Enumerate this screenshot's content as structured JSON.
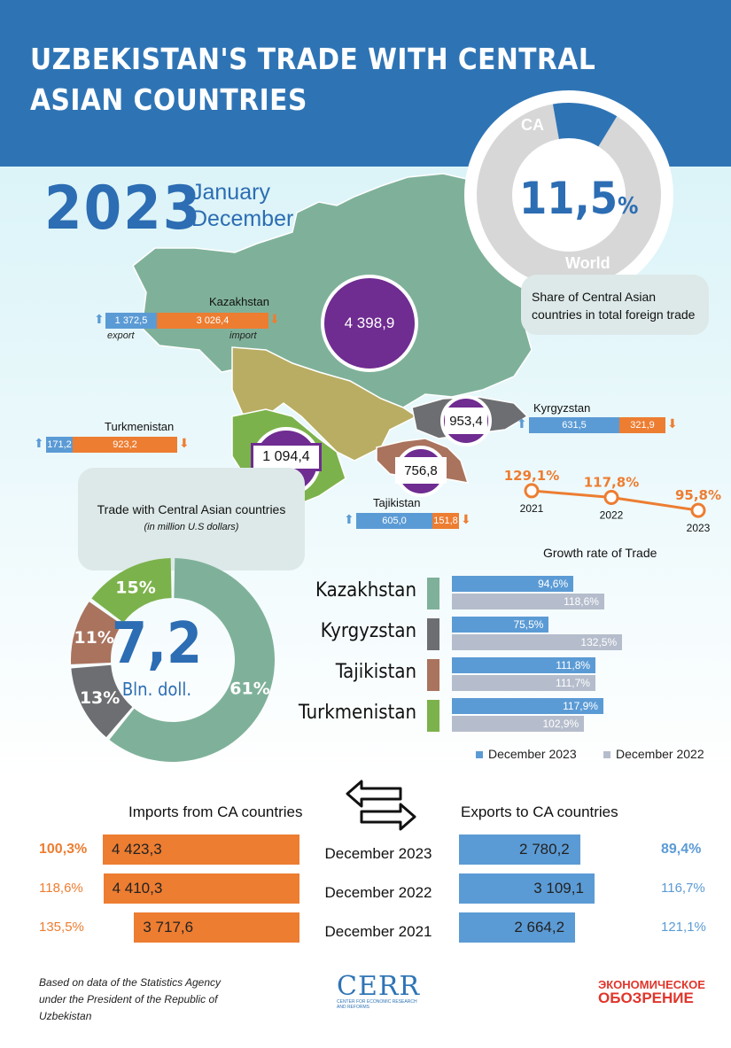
{
  "title": "UZBEKISTAN'S TRADE WITH CENTRAL ASIAN COUNTRIES",
  "year": "2023",
  "period": "January December",
  "share": {
    "ca_label": "CA",
    "world_label": "World",
    "value": "11,5",
    "unit": "%",
    "caption": "Share of Central Asian countries in total foreign trade",
    "fraction": 0.115
  },
  "map": {
    "kazakhstan": {
      "name": "Kazakhstan",
      "total": "4 398,9",
      "export": "1 372,5",
      "import": "3 026,4",
      "export_caption": "export",
      "import_caption": "import"
    },
    "kyrgyzstan": {
      "name": "Kyrgyzstan",
      "total": "953,4",
      "export": "631,5",
      "import": "321,9"
    },
    "turkmenistan": {
      "name": "Turkmenistan",
      "total": "1 094,4",
      "export": "171,2",
      "import": "923,2"
    },
    "tajikistan": {
      "name": "Tajikistan",
      "total": "756,8",
      "export": "605,0",
      "import": "151,8"
    }
  },
  "trade_box": {
    "title": "Trade with Central Asian countries",
    "subtitle": "(in million U.S dollars)"
  },
  "donut": {
    "total": "7,2",
    "unit": "Bln. doll."
  },
  "growth_title": "Growth rate of Trade",
  "legend": {
    "dec2023": "December 2023",
    "dec2022": "December 2022"
  },
  "tables": {
    "imports_title": "Imports from CA countries",
    "exports_title": "Exports to CA countries",
    "rows": [
      {
        "year": "December 2023",
        "import": "4 423,3",
        "import_growth": "100,3%",
        "export": "2 780,2",
        "export_growth": "89,4%"
      },
      {
        "year": "December 2022",
        "import": "4 410,3",
        "import_growth": "118,6%",
        "export": "3 109,1",
        "export_growth": "116,7%"
      },
      {
        "year": "December 2021",
        "import": "3 717,6",
        "import_growth": "135,5%",
        "export": "2 664,2",
        "export_growth": "121,1%"
      }
    ]
  },
  "footer": {
    "source": "Based on data of the Statistics Agency under the President of the Republic of Uzbekistan",
    "cerr": "CERR",
    "cerr_sub": "CENTER FOR ECONOMIC RESEARCH AND REFORMS",
    "brand_line1": "ЭКОНОМИЧЕСКОЕ",
    "brand_line2": "ОБОЗРЕНИЕ"
  },
  "colors": {
    "header": "#2e74b5",
    "kazakhstan": "#7fb19a",
    "kyrgyzstan": "#6d6e71",
    "tajikistan": "#a9735e",
    "turkmenistan": "#7cb24c",
    "bubble": "#6f2c91",
    "export": "#5b9bd5",
    "import": "#ed7d31",
    "prev_year": "#b5bdcc"
  },
  "chart_data": [
    {
      "type": "pie",
      "categories": [
        "Kazakhstan",
        "Kyrgyzstan",
        "Tajikistan",
        "Turkmenistan"
      ],
      "values": [
        61,
        13,
        11,
        15
      ],
      "labels": [
        "61%",
        "13%",
        "11%",
        "15%"
      ]
    },
    {
      "type": "line",
      "title": "Growth rate of Trade",
      "x": [
        "2021",
        "2022",
        "2023"
      ],
      "values": [
        129.1,
        117.8,
        95.8
      ],
      "labels": [
        "129,1%",
        "117,8%",
        "95,8%"
      ]
    },
    {
      "type": "bar",
      "categories": [
        "Kazakhstan",
        "Kyrgyzstan",
        "Tajikistan",
        "Turkmenistan"
      ],
      "series": [
        {
          "name": "December 2023",
          "values": [
            94.6,
            75.5,
            111.8,
            117.9
          ],
          "labels": [
            "94,6%",
            "75,5%",
            "111,8%",
            "117,9%"
          ]
        },
        {
          "name": "December 2022",
          "values": [
            118.6,
            132.5,
            111.7,
            102.9
          ],
          "labels": [
            "118,6%",
            "132,5%",
            "111,7%",
            "102,9%"
          ]
        }
      ]
    },
    {
      "type": "bar",
      "categories": [
        "December 2023",
        "December 2022",
        "December 2021"
      ],
      "series": [
        {
          "name": "Imports from CA countries",
          "values": [
            4423.3,
            4410.3,
            3717.6
          ]
        },
        {
          "name": "Exports to CA countries",
          "values": [
            2780.2,
            3109.1,
            2664.2
          ]
        }
      ]
    },
    {
      "type": "bar",
      "categories": [
        "Kazakhstan",
        "Kyrgyzstan",
        "Turkmenistan",
        "Tajikistan"
      ],
      "series": [
        {
          "name": "export",
          "values": [
            1372.5,
            631.5,
            171.2,
            605.0
          ]
        },
        {
          "name": "import",
          "values": [
            3026.4,
            321.9,
            923.2,
            151.8
          ]
        }
      ]
    }
  ]
}
